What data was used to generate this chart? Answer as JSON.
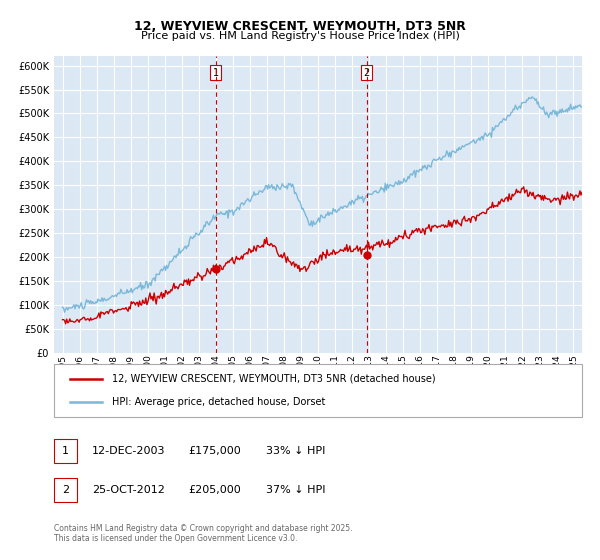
{
  "title": "12, WEYVIEW CRESCENT, WEYMOUTH, DT3 5NR",
  "subtitle": "Price paid vs. HM Land Registry's House Price Index (HPI)",
  "bg_color": "#dce9f5",
  "grid_color": "#ffffff",
  "hpi_color": "#7bb8d8",
  "price_color": "#cc0000",
  "marker1_x": 2004.0,
  "marker1_y": 175000,
  "marker2_x": 2012.85,
  "marker2_y": 205000,
  "legend_line1": "12, WEYVIEW CRESCENT, WEYMOUTH, DT3 5NR (detached house)",
  "legend_line2": "HPI: Average price, detached house, Dorset",
  "ann1_date": "12-DEC-2003",
  "ann1_price": "£175,000",
  "ann1_hpi": "33% ↓ HPI",
  "ann2_date": "25-OCT-2012",
  "ann2_price": "£205,000",
  "ann2_hpi": "37% ↓ HPI",
  "footer": "Contains HM Land Registry data © Crown copyright and database right 2025.\nThis data is licensed under the Open Government Licence v3.0.",
  "ylim": [
    0,
    620000
  ],
  "yticks": [
    0,
    50000,
    100000,
    150000,
    200000,
    250000,
    300000,
    350000,
    400000,
    450000,
    500000,
    550000,
    600000
  ],
  "xlim_start": 1994.5,
  "xlim_end": 2025.5
}
